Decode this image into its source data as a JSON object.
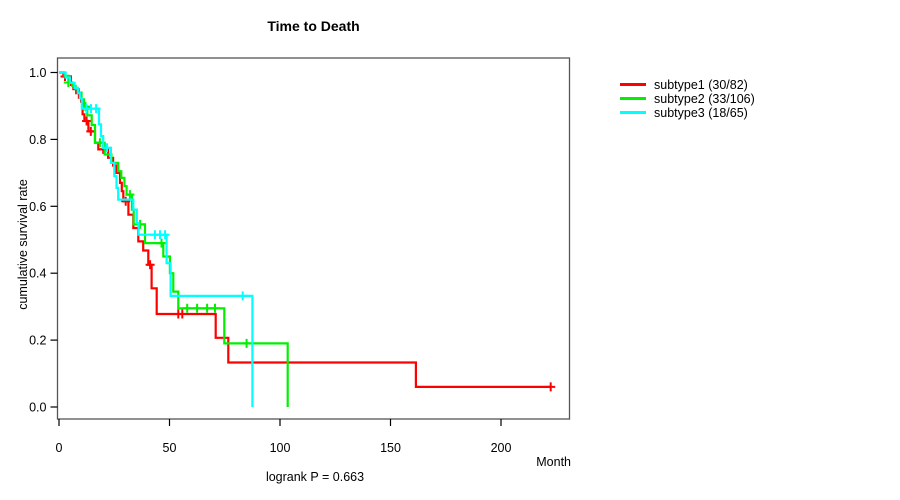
{
  "title": "Time to Death",
  "annotation": "logrank P = 0.663",
  "legend": {
    "items": [
      {
        "label": "subtype1 (30/82)",
        "color": "#ff0000"
      },
      {
        "label": "subtype2 (33/106)",
        "color": "#00f000"
      },
      {
        "label": "subtype3 (18/65)",
        "color": "#00ffff"
      }
    ]
  },
  "chart_data": {
    "type": "line",
    "subtype": "kaplan-meier-step",
    "title": "Time to Death",
    "xlabel": "Month",
    "ylabel": "cumulative survival rate",
    "annotation": "logrank P = 0.663",
    "x_ticks": [
      0,
      50,
      100,
      150,
      200
    ],
    "y_ticks": [
      0.0,
      0.2,
      0.4,
      0.6,
      0.8,
      1.0
    ],
    "xlim": [
      0,
      231
    ],
    "ylim": [
      0.0,
      1.0
    ],
    "grid": false,
    "legend_position": "right-outside",
    "series": [
      {
        "name": "subtype1",
        "label": "subtype1 (30/82)",
        "events": 30,
        "total": 82,
        "color": "#ff0000",
        "points": [
          [
            0,
            1.0
          ],
          [
            2,
            0.988
          ],
          [
            5.4,
            0.963
          ],
          [
            6.5,
            0.95
          ],
          [
            7.8,
            0.938
          ],
          [
            9,
            0.925
          ],
          [
            10,
            0.913
          ],
          [
            10.7,
            0.875
          ],
          [
            11.5,
            0.855
          ],
          [
            13.3,
            0.824
          ],
          [
            16.3,
            0.79
          ],
          [
            17.8,
            0.77
          ],
          [
            22.2,
            0.745
          ],
          [
            24.5,
            0.722
          ],
          [
            26,
            0.7
          ],
          [
            27.6,
            0.67
          ],
          [
            28.4,
            0.645
          ],
          [
            29.1,
            0.615
          ],
          [
            31.4,
            0.575
          ],
          [
            33.6,
            0.535
          ],
          [
            35.9,
            0.495
          ],
          [
            38.1,
            0.468
          ],
          [
            40.4,
            0.425
          ],
          [
            41.9,
            0.355
          ],
          [
            44.2,
            0.278
          ],
          [
            70.9,
            0.207
          ],
          [
            76.6,
            0.133
          ],
          [
            161.5,
            0.06
          ],
          [
            222.5,
            0.06
          ]
        ],
        "censors": [
          [
            2.7,
            0.988
          ],
          [
            12.5,
            0.855
          ],
          [
            14.4,
            0.824
          ],
          [
            20,
            0.77
          ],
          [
            30.2,
            0.615
          ],
          [
            41.2,
            0.425
          ],
          [
            54,
            0.278
          ],
          [
            55.8,
            0.278
          ],
          [
            222.5,
            0.06
          ]
        ]
      },
      {
        "name": "subtype2",
        "label": "subtype2 (33/106)",
        "events": 33,
        "total": 106,
        "color": "#00f000",
        "points": [
          [
            0,
            1.0
          ],
          [
            2.5,
            0.99
          ],
          [
            4.5,
            0.97
          ],
          [
            6,
            0.96
          ],
          [
            7.5,
            0.95
          ],
          [
            9,
            0.94
          ],
          [
            10.2,
            0.92
          ],
          [
            11.3,
            0.898
          ],
          [
            12.8,
            0.872
          ],
          [
            14.8,
            0.843
          ],
          [
            16.3,
            0.79
          ],
          [
            20.7,
            0.755
          ],
          [
            23.7,
            0.73
          ],
          [
            26.8,
            0.705
          ],
          [
            28.2,
            0.685
          ],
          [
            29.6,
            0.66
          ],
          [
            30.6,
            0.635
          ],
          [
            33,
            0.59
          ],
          [
            33.8,
            0.546
          ],
          [
            38.9,
            0.49
          ],
          [
            47.2,
            0.45
          ],
          [
            50.2,
            0.4
          ],
          [
            51.7,
            0.345
          ],
          [
            54,
            0.295
          ],
          [
            74.8,
            0.19
          ],
          [
            103.5,
            0.0
          ]
        ],
        "censors": [
          [
            4.2,
            0.97
          ],
          [
            12,
            0.898
          ],
          [
            18.5,
            0.79
          ],
          [
            32.1,
            0.635
          ],
          [
            36.7,
            0.546
          ],
          [
            46.4,
            0.49
          ],
          [
            58,
            0.295
          ],
          [
            62.5,
            0.295
          ],
          [
            67,
            0.295
          ],
          [
            70.6,
            0.295
          ],
          [
            84.9,
            0.19
          ]
        ]
      },
      {
        "name": "subtype3",
        "label": "subtype3 (18/65)",
        "events": 18,
        "total": 65,
        "color": "#00ffff",
        "points": [
          [
            0,
            1.0
          ],
          [
            3,
            0.985
          ],
          [
            5,
            0.969
          ],
          [
            7,
            0.954
          ],
          [
            8.5,
            0.938
          ],
          [
            9.5,
            0.923
          ],
          [
            10.3,
            0.892
          ],
          [
            18.1,
            0.845
          ],
          [
            19,
            0.81
          ],
          [
            20,
            0.775
          ],
          [
            23.5,
            0.73
          ],
          [
            25,
            0.69
          ],
          [
            26,
            0.655
          ],
          [
            26.8,
            0.62
          ],
          [
            33.6,
            0.59
          ],
          [
            35.2,
            0.55
          ],
          [
            36,
            0.515
          ],
          [
            48.7,
            0.43
          ],
          [
            50.5,
            0.332
          ],
          [
            87.5,
            0.0
          ]
        ],
        "censors": [
          [
            12.4,
            0.892
          ],
          [
            14.5,
            0.892
          ],
          [
            16.8,
            0.892
          ],
          [
            21.7,
            0.775
          ],
          [
            43.4,
            0.515
          ],
          [
            45.7,
            0.515
          ],
          [
            48,
            0.515
          ],
          [
            83.1,
            0.332
          ]
        ]
      }
    ]
  }
}
